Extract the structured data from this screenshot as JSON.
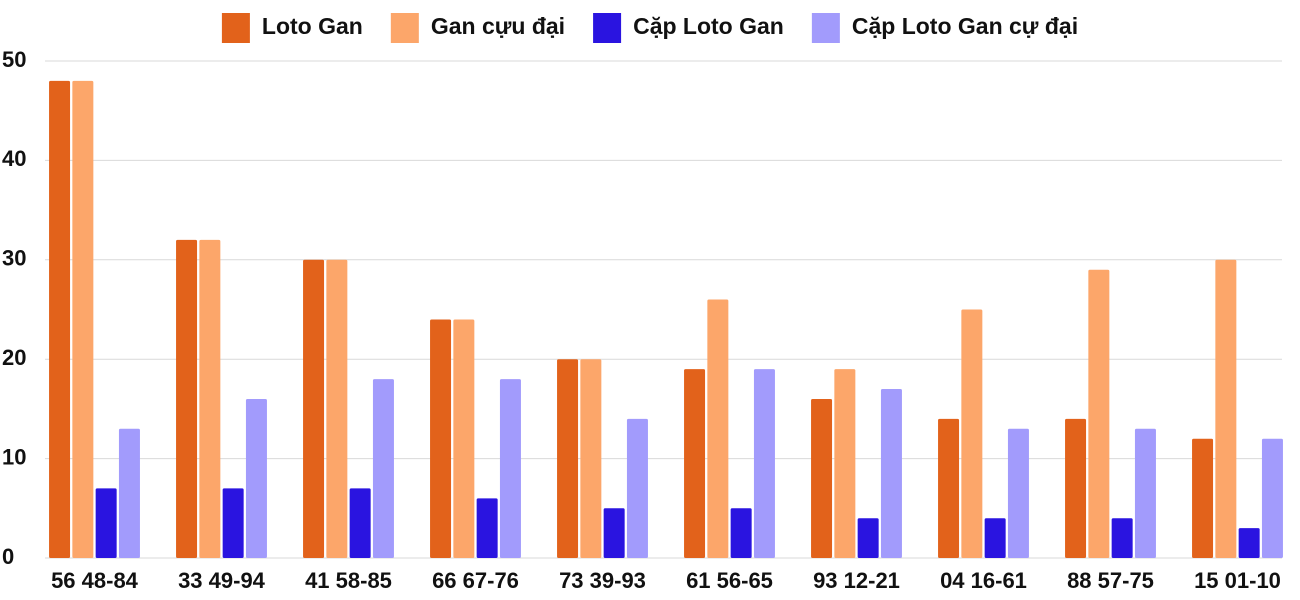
{
  "chart_data": {
    "type": "bar",
    "categories": [
      "56 48-84",
      "33 49-94",
      "41 58-85",
      "66 67-76",
      "73 39-93",
      "61 56-65",
      "93 12-21",
      "04 16-61",
      "88 57-75",
      "15 01-10"
    ],
    "series": [
      {
        "name": "Loto Gan",
        "color": "#e2621b",
        "values": [
          48,
          32,
          30,
          24,
          20,
          19,
          16,
          14,
          14,
          12
        ]
      },
      {
        "name": "Gan cựu đại",
        "color": "#fca66a",
        "values": [
          48,
          32,
          30,
          24,
          20,
          26,
          19,
          25,
          29,
          30
        ]
      },
      {
        "name": "Cặp Loto Gan",
        "color": "#2a14e0",
        "values": [
          7,
          7,
          7,
          6,
          5,
          5,
          4,
          4,
          4,
          3
        ]
      },
      {
        "name": "Cặp Loto Gan cự đại",
        "color": "#a29bfc",
        "values": [
          13,
          16,
          18,
          18,
          14,
          19,
          17,
          13,
          13,
          12
        ]
      }
    ],
    "ylim": [
      0,
      50
    ],
    "yticks": [
      0,
      10,
      20,
      30,
      40,
      50
    ],
    "grid": true,
    "legend": "top"
  }
}
